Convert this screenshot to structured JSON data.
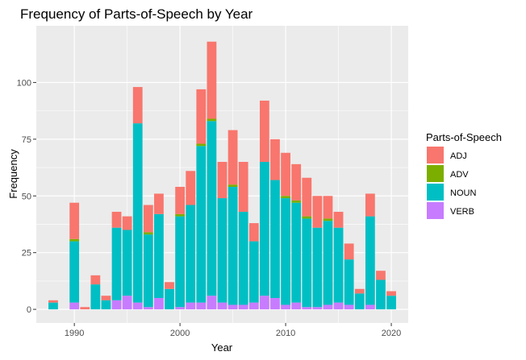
{
  "chart_data": {
    "type": "bar",
    "stacked": true,
    "title": "Frequency of Parts-of-Speech by Year",
    "xlabel": "Year",
    "ylabel": "Frequency",
    "xlim": [
      1986.4,
      2021.6
    ],
    "ylim": [
      -6,
      125
    ],
    "xticks": [
      1990,
      2000,
      2010,
      2020
    ],
    "yticks": [
      0,
      25,
      50,
      75,
      100
    ],
    "grid": true,
    "legend": {
      "title": "Parts-of-Speech",
      "position": "right"
    },
    "x": [
      1988,
      1990,
      1991,
      1992,
      1993,
      1994,
      1995,
      1996,
      1997,
      1998,
      1999,
      2000,
      2001,
      2002,
      2003,
      2004,
      2005,
      2006,
      2007,
      2008,
      2009,
      2010,
      2011,
      2012,
      2013,
      2014,
      2015,
      2016,
      2017,
      2018,
      2019,
      2020
    ],
    "series": [
      {
        "name": "VERB",
        "color": "#C77CFF",
        "values": [
          0,
          3,
          0,
          0,
          0,
          4,
          6,
          3,
          1,
          5,
          0,
          1,
          3,
          3,
          6,
          3,
          2,
          2,
          3,
          6,
          5,
          2,
          3,
          1,
          1,
          2,
          3,
          2,
          0,
          2,
          0,
          0
        ]
      },
      {
        "name": "NOUN",
        "color": "#00BFC4",
        "values": [
          3,
          27,
          0,
          11,
          4,
          32,
          29,
          79,
          32,
          37,
          9,
          40,
          43,
          69,
          77,
          46,
          52,
          41,
          27,
          59,
          52,
          47,
          44,
          39,
          35,
          37,
          33,
          20,
          7,
          39,
          13,
          6
        ]
      },
      {
        "name": "ADV",
        "color": "#7CAE00",
        "values": [
          0,
          1,
          0,
          0,
          0,
          0,
          0,
          0,
          1,
          0,
          0,
          1,
          0,
          1,
          1,
          0,
          1,
          0,
          0,
          0,
          0,
          1,
          1,
          1,
          0,
          1,
          0,
          0,
          0,
          0,
          0,
          0
        ]
      },
      {
        "name": "ADJ",
        "color": "#F8766D",
        "values": [
          1,
          16,
          1,
          4,
          2,
          7,
          6,
          16,
          12,
          9,
          3,
          12,
          15,
          24,
          34,
          16,
          24,
          22,
          8,
          27,
          18,
          19,
          16,
          17,
          14,
          10,
          7,
          7,
          2,
          10,
          4,
          2
        ]
      }
    ]
  }
}
